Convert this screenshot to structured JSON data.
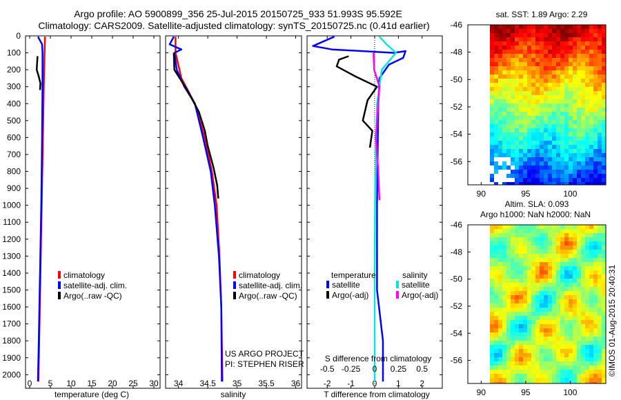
{
  "title_line1": "Argo profile: AO 5900899_356 25-Jul-2015 20150725_933 51.993S 95.592E",
  "title_line2": "Climatology: CARS2009. Satellite-adjusted climatology: synTS_20150725.nc (0.41d earlier)",
  "credit_project": "US ARGO PROJECT",
  "credit_pi": "PI: STEPHEN RISER",
  "stamp": "©IMOS 01-Aug-2015 20:40:31",
  "colors": {
    "climatology": "#ff0000",
    "satellite": "#0000ff",
    "argo": "#000000",
    "cyan": "#00e5e5",
    "magenta": "#ff00ff"
  },
  "chart_data": [
    {
      "id": "temperature",
      "type": "line",
      "xlabel": "temperature (deg C)",
      "xticks": [
        "0",
        "5",
        "10",
        "15",
        "20",
        "25",
        "30"
      ],
      "xticks_values": [
        0,
        5,
        10,
        15,
        20,
        25,
        30
      ],
      "xlim": [
        -1,
        31.5
      ],
      "ylim": [
        2080,
        0
      ],
      "yticks": [
        0,
        100,
        200,
        300,
        400,
        500,
        600,
        700,
        800,
        900,
        1000,
        1100,
        1200,
        1300,
        1400,
        1500,
        1600,
        1700,
        1800,
        1900,
        2000
      ],
      "legend": [
        "climatology",
        "satellite-adj. clim.",
        "Argo(..raw -QC)"
      ],
      "series": [
        {
          "name": "climatology",
          "color": "#ff0000",
          "points": [
            [
              3.7,
              5
            ],
            [
              3.6,
              100
            ],
            [
              3.4,
              300
            ],
            [
              3.2,
              600
            ],
            [
              2.9,
              1000
            ],
            [
              2.6,
              1400
            ],
            [
              2.3,
              1800
            ],
            [
              2.1,
              2040
            ]
          ]
        },
        {
          "name": "satellite-adj. clim.",
          "color": "#0000ff",
          "points": [
            [
              2.0,
              5
            ],
            [
              3.0,
              50
            ],
            [
              3.1,
              100
            ],
            [
              3.1,
              300
            ],
            [
              3.0,
              600
            ],
            [
              2.8,
              1000
            ],
            [
              2.5,
              1400
            ],
            [
              2.2,
              1800
            ],
            [
              2.0,
              2040
            ]
          ]
        },
        {
          "name": "Argo(..raw -QC)",
          "color": "#000000",
          "points": [
            [
              1.9,
              120
            ],
            [
              1.7,
              200
            ],
            [
              2.2,
              240
            ],
            [
              2.6,
              280
            ],
            [
              2.5,
              320
            ]
          ]
        }
      ]
    },
    {
      "id": "salinity",
      "type": "line",
      "xlabel": "salinity",
      "xticks": [
        "34",
        "34.5",
        "35",
        "35.5",
        "36"
      ],
      "xticks_values": [
        34,
        34.5,
        35,
        35.5,
        36
      ],
      "xlim": [
        33.78,
        36.1
      ],
      "ylim": [
        2080,
        0
      ],
      "legend": [
        "climatology",
        "satellite-adj. clim.",
        "Argo(..raw -QC)"
      ],
      "series": [
        {
          "name": "climatology",
          "color": "#ff0000",
          "points": [
            [
              33.95,
              5
            ],
            [
              33.95,
              100
            ],
            [
              34.05,
              250
            ],
            [
              34.28,
              400
            ],
            [
              34.45,
              600
            ],
            [
              34.57,
              800
            ],
            [
              34.65,
              1000
            ],
            [
              34.7,
              1300
            ],
            [
              34.73,
              1600
            ],
            [
              34.75,
              2040
            ]
          ]
        },
        {
          "name": "satellite-adj. clim.",
          "color": "#0000ff",
          "points": [
            [
              33.92,
              5
            ],
            [
              33.85,
              50
            ],
            [
              34.05,
              80
            ],
            [
              33.93,
              100
            ],
            [
              33.97,
              200
            ],
            [
              34.1,
              300
            ],
            [
              34.28,
              400
            ],
            [
              34.42,
              600
            ],
            [
              34.55,
              800
            ],
            [
              34.62,
              1000
            ],
            [
              34.69,
              1300
            ],
            [
              34.73,
              1600
            ],
            [
              34.74,
              2040
            ]
          ]
        },
        {
          "name": "Argo(..raw -QC)",
          "color": "#000000",
          "points": [
            [
              33.92,
              100
            ],
            [
              33.93,
              200
            ],
            [
              34.15,
              320
            ],
            [
              34.35,
              450
            ],
            [
              34.45,
              560
            ],
            [
              34.5,
              650
            ],
            [
              34.6,
              780
            ],
            [
              34.66,
              880
            ],
            [
              34.68,
              960
            ]
          ]
        }
      ]
    },
    {
      "id": "difference",
      "type": "line",
      "xlabel": "T difference from climatology",
      "xlabel_top": "S difference from climatology",
      "xticks": [
        "-2",
        "-1",
        "0",
        "1",
        "2"
      ],
      "xticks_values": [
        -2,
        -1,
        0,
        1,
        2
      ],
      "xticks_top": [
        "-0.5",
        "-0.25",
        "0",
        "0.25",
        "0.5"
      ],
      "xticks_top_values": [
        -0.5,
        -0.25,
        0,
        0.25,
        0.5
      ],
      "xlim": [
        -2.85,
        2.85
      ],
      "ylim": [
        2080,
        0
      ],
      "legend_headers": [
        "temperature",
        "salinity"
      ],
      "legend": [
        "satellite",
        "Argo(-adj)",
        "satellite",
        "Argo(-adj)"
      ],
      "series": [
        {
          "name": "temperature satellite",
          "color": "#0000ff",
          "points": [
            [
              -1.7,
              5
            ],
            [
              -2.6,
              60
            ],
            [
              -1.8,
              80
            ],
            [
              -0.5,
              90
            ],
            [
              0.8,
              100
            ],
            [
              1.3,
              90
            ],
            [
              1.2,
              130
            ],
            [
              0.6,
              170
            ],
            [
              0.2,
              250
            ],
            [
              0.15,
              400
            ],
            [
              0.1,
              1000
            ],
            [
              0.1,
              1500
            ],
            [
              0.35,
              1800
            ],
            [
              0.35,
              2040
            ]
          ]
        },
        {
          "name": "temperature Argo(-adj)",
          "color": "#000000",
          "points": [
            [
              -1.1,
              120
            ],
            [
              -1.5,
              140
            ],
            [
              -1.6,
              180
            ],
            [
              -0.8,
              240
            ],
            [
              0.1,
              300
            ],
            [
              -0.3,
              380
            ],
            [
              -0.5,
              500
            ],
            [
              -0.1,
              560
            ],
            [
              -0.2,
              660
            ]
          ]
        },
        {
          "name": "salinity satellite",
          "color": "#00e5e5",
          "points": [
            [
              0.2,
              5
            ],
            [
              0.5,
              50
            ],
            [
              0.9,
              100
            ],
            [
              0.3,
              200
            ],
            [
              0.1,
              400
            ],
            [
              0.02,
              900
            ],
            [
              0.0,
              1400
            ],
            [
              0.0,
              2040
            ]
          ]
        },
        {
          "name": "salinity Argo(-adj)",
          "color": "#ff00ff",
          "points": [
            [
              -0.05,
              100
            ],
            [
              -0.02,
              200
            ],
            [
              0.2,
              300
            ],
            [
              0.15,
              400
            ],
            [
              0.05,
              600
            ],
            [
              0.15,
              800
            ],
            [
              0.2,
              970
            ]
          ]
        }
      ]
    },
    {
      "id": "sst-map",
      "type": "heatmap",
      "title": "sat. SST: 1.89 Argo: 2.29",
      "xticks": [
        "90",
        "95",
        "100"
      ],
      "xticks_values": [
        90,
        95,
        100
      ],
      "yticks": [
        "-46",
        "-48",
        "-50",
        "-52",
        "-54",
        "-56"
      ],
      "yticks_values": [
        -46,
        -48,
        -50,
        -52,
        -54,
        -56
      ],
      "xlim": [
        88.5,
        104
      ],
      "ylim": [
        -57.7,
        -46
      ]
    },
    {
      "id": "sla-map",
      "type": "heatmap",
      "title": "Altim. SLA: 0.093",
      "subtitle": "Argo h1000: NaN h2000: NaN",
      "xticks": [
        "90",
        "95",
        "100"
      ],
      "xticks_values": [
        90,
        95,
        100
      ],
      "yticks": [
        "-46",
        "-48",
        "-50",
        "-52",
        "-54",
        "-56"
      ],
      "yticks_values": [
        -46,
        -48,
        -50,
        -52,
        -54,
        -56
      ],
      "xlim": [
        88.5,
        104
      ],
      "ylim": [
        -57.7,
        -46
      ]
    }
  ]
}
